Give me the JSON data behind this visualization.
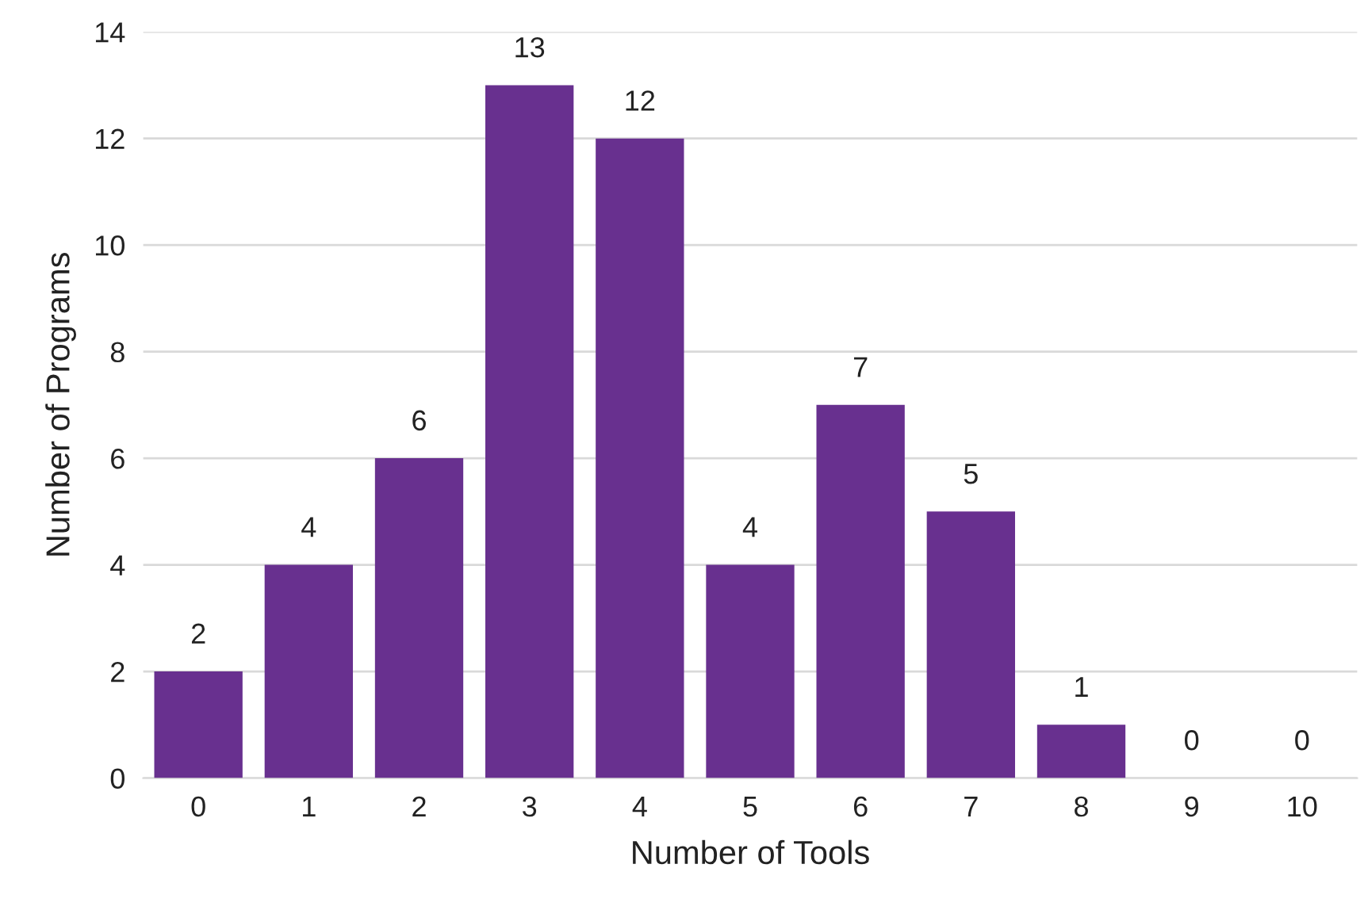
{
  "chart_data": {
    "type": "bar",
    "xlabel": "Number of Tools",
    "ylabel": "Number of Programs",
    "categories": [
      "0",
      "1",
      "2",
      "3",
      "4",
      "5",
      "6",
      "7",
      "8",
      "9",
      "10"
    ],
    "values": [
      2,
      4,
      6,
      13,
      12,
      4,
      7,
      5,
      1,
      0,
      0
    ],
    "color": "#68308f",
    "ylim": [
      0,
      14
    ],
    "yticks": [
      0,
      2,
      4,
      6,
      8,
      10,
      12,
      14
    ],
    "grid": "y",
    "data_labels": true
  }
}
